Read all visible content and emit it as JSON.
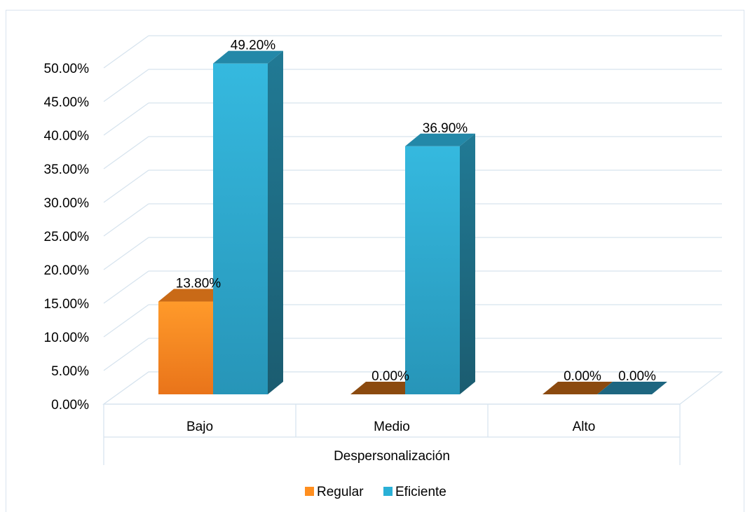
{
  "chart_data": {
    "type": "bar",
    "categories": [
      "Bajo",
      "Medio",
      "Alto"
    ],
    "series": [
      {
        "name": "Regular",
        "values": [
          13.8,
          0.0,
          0.0
        ],
        "labels": [
          "13.80%",
          "0.00%",
          "0.00%"
        ],
        "color": "#ff8f1f"
      },
      {
        "name": "Eficiente",
        "values": [
          49.2,
          36.9,
          0.0
        ],
        "labels": [
          "49.20%",
          "36.90%",
          "0.00%"
        ],
        "color": "#2ab0d6"
      }
    ],
    "xlabel": "Despersonalización",
    "ylabel": "",
    "ylim": [
      0,
      50
    ],
    "yticks": [
      0,
      5,
      10,
      15,
      20,
      25,
      30,
      35,
      40,
      45,
      50
    ],
    "ytick_labels": [
      "0.00%",
      "5.00%",
      "10.00%",
      "15.00%",
      "20.00%",
      "25.00%",
      "30.00%",
      "35.00%",
      "40.00%",
      "45.00%",
      "50.00%"
    ],
    "grid": true,
    "legend_position": "bottom",
    "style": "3d-column"
  }
}
